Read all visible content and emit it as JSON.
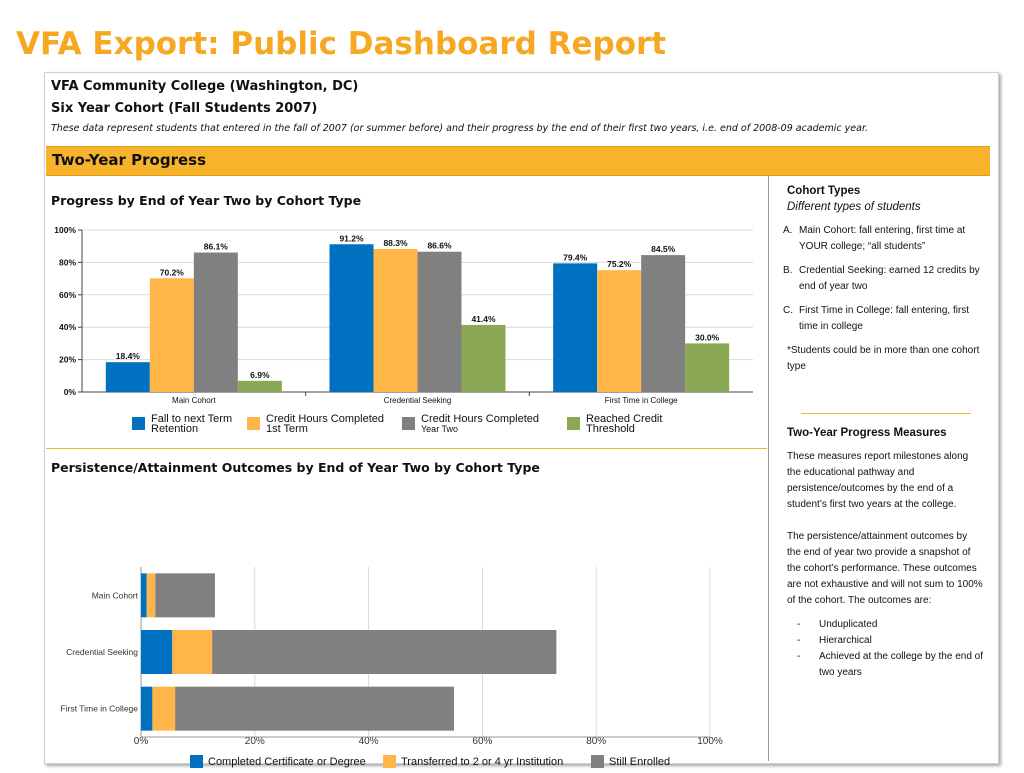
{
  "slide_title": "VFA Export: Public Dashboard Report",
  "report": {
    "institution": "VFA Community College (Washington,  DC)",
    "cohort": "Six Year Cohort (Fall Students 2007)",
    "description": "These data represent  students that entered  in the fall of 2007 (or summer before) and their progress  by the end of their first two years, i.e. end of 2008-09 academic year.",
    "section_title": "Two-Year Progress"
  },
  "colors": {
    "blue": "#0070C0",
    "orange": "#FFB547",
    "gray": "#808080",
    "green": "#8BA955",
    "accent": "#F7B32B",
    "title": "#F7A823"
  },
  "chart_data": [
    {
      "type": "bar",
      "title": "Progress by End of Year Two by Cohort Type",
      "categories": [
        "Main Cohort",
        "Credential Seeking",
        "First Time in College"
      ],
      "series": [
        {
          "name": "Fall to next Term Retention",
          "legend_lines": [
            "Fall to next Term",
            "Retention"
          ],
          "values": [
            18.4,
            91.2,
            79.4
          ],
          "color": "#0070C0"
        },
        {
          "name": "Credit Hours Completed 1st Term",
          "legend_lines": [
            "Credit Hours Completed",
            "1st Term"
          ],
          "values": [
            70.2,
            88.3,
            75.2
          ],
          "color": "#FFB547"
        },
        {
          "name": "Credit Hours Completed Year Two",
          "legend_lines": [
            "Credit Hours Completed",
            "Year Two"
          ],
          "values": [
            86.1,
            86.6,
            84.5
          ],
          "color": "#808080"
        },
        {
          "name": "Reached Credit Threshold",
          "legend_lines": [
            "Reached Credit",
            "Threshold"
          ],
          "values": [
            6.9,
            41.4,
            30.0
          ],
          "color": "#8BA955"
        }
      ],
      "value_labels": [
        [
          "18.4%",
          "91.2%",
          "79.4%"
        ],
        [
          "70.2%",
          "88.3%",
          "75.2%"
        ],
        [
          "86.1%",
          "86.6%",
          "84.5%"
        ],
        [
          "6.9%",
          "41.4%",
          "30.0%"
        ]
      ],
      "y_ticks": [
        "0%",
        "20%",
        "40%",
        "60%",
        "80%",
        "100%"
      ],
      "ylim": [
        0,
        100
      ],
      "grid": true,
      "legend_position": "bottom"
    },
    {
      "type": "bar",
      "orientation": "horizontal",
      "stacked": true,
      "title": "Persistence/Attainment  Outcomes by End of Year Two by Cohort Type",
      "categories": [
        "Main Cohort",
        "Credential Seeking",
        "First Time in College"
      ],
      "series": [
        {
          "name": "Completed Certificate or Degree",
          "values": [
            1.0,
            5.5,
            2.0
          ],
          "color": "#0070C0"
        },
        {
          "name": "Transferred to 2 or 4 yr Institution",
          "values": [
            1.5,
            7.0,
            4.0
          ],
          "color": "#FFB547"
        },
        {
          "name": "Still Enrolled",
          "values": [
            10.5,
            60.5,
            49.0
          ],
          "color": "#808080"
        }
      ],
      "x_ticks": [
        "0%",
        "20%",
        "40%",
        "60%",
        "80%",
        "100%"
      ],
      "xlim": [
        0,
        100
      ],
      "grid": true,
      "legend_position": "bottom"
    }
  ],
  "sidebar": {
    "cohort_heading": "Cohort Types",
    "cohort_subheading": "Different types of students",
    "cohort_items": [
      {
        "marker": "A.",
        "text": "Main Cohort: fall entering, first time at YOUR college; “all students”"
      },
      {
        "marker": "B.",
        "text": "Credential Seeking: earned 12 credits by end of year two"
      },
      {
        "marker": "C.",
        "text": "First Time in College: fall entering, first time in college"
      }
    ],
    "note": "*Students could be in more than one cohort type",
    "measures_heading": "Two-Year Progress Measures",
    "measures_p1": "These measures report milestones along the educational pathway and persistence/outcomes by the end of a student’s first two years at the college.",
    "measures_p2": "The persistence/attainment outcomes by the end of year two provide a snapshot of the cohort’s performance. These outcomes are not exhaustive and will not sum to 100% of the cohort. The outcomes are:",
    "bullets": [
      "Unduplicated",
      "Hierarchical",
      "Achieved at the college by the end of two years"
    ],
    "bullet_marker": "-"
  }
}
